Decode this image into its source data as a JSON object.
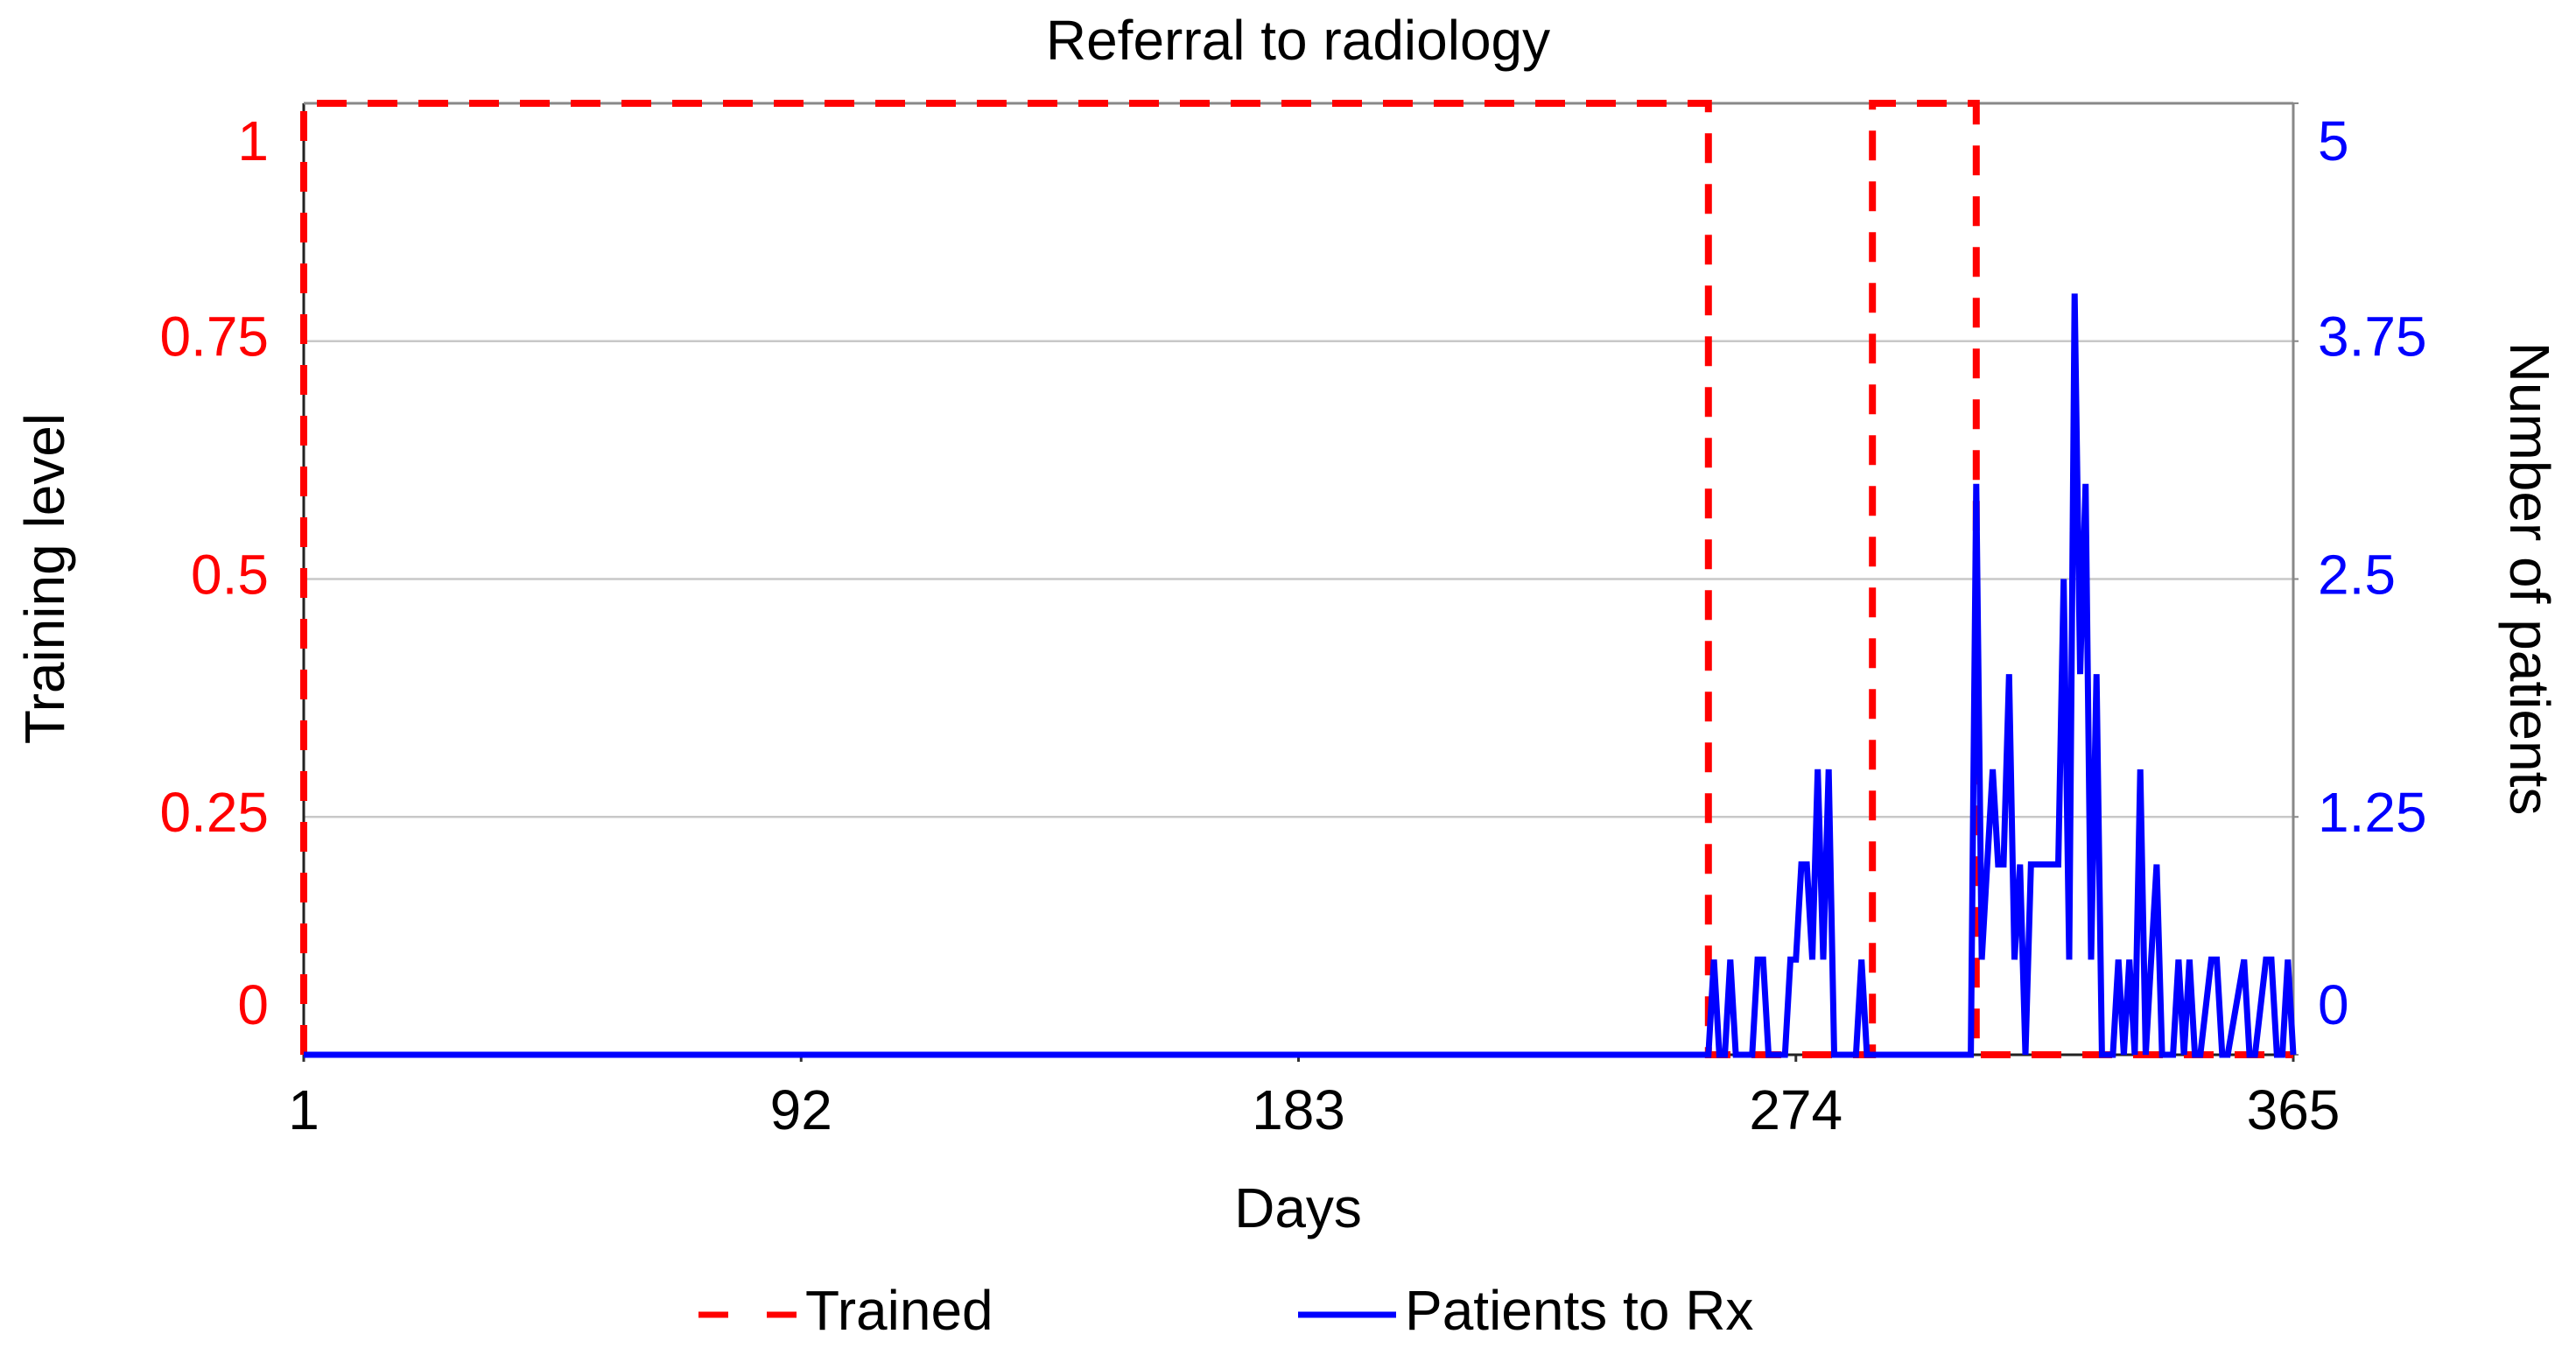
{
  "chart_data": {
    "type": "line",
    "title": "Referral to radiology",
    "x_label": "Days",
    "y_label": "Training level",
    "y2_label": "Number of patients",
    "xlim": [
      1,
      365
    ],
    "xticks": [
      1,
      92,
      183,
      274,
      365
    ],
    "ylim": [
      0,
      1
    ],
    "yticks": [
      0,
      0.25,
      0.5,
      0.75,
      1
    ],
    "y2lim": [
      0,
      5
    ],
    "y2ticks": [
      0,
      1.25,
      2.5,
      3.75,
      5
    ],
    "grid": true,
    "legend_position": "bottom",
    "y_color": "#ff0000",
    "y2_color": "#0000ff",
    "series": [
      {
        "name": "Trained",
        "color": "#ff0000",
        "line_style": "dashed",
        "x": [
          1,
          1,
          258,
          258,
          288,
          288,
          307,
          307,
          365
        ],
        "values": [
          0,
          1,
          1,
          0,
          0,
          1,
          1,
          0,
          0
        ]
      },
      {
        "name": "Patients to Rx",
        "color": "#0000ff",
        "line_style": "solid",
        "axis": "y2",
        "x": [
          1,
          258,
          259,
          260,
          261,
          262,
          263,
          266,
          267,
          268,
          269,
          272,
          273,
          274,
          275,
          276,
          277,
          278,
          279,
          280,
          281,
          285,
          286,
          287,
          306,
          307,
          308,
          309,
          310,
          311,
          312,
          313,
          314,
          315,
          316,
          317,
          318,
          319,
          320,
          321,
          322,
          323,
          324,
          325,
          326,
          327,
          328,
          329,
          330,
          332,
          333,
          334,
          335,
          336,
          337,
          338,
          339,
          340,
          341,
          343,
          344,
          345,
          346,
          347,
          348,
          350,
          351,
          352,
          353,
          356,
          357,
          358,
          360,
          361,
          362,
          363,
          364,
          365
        ],
        "values": [
          0,
          0,
          0.5,
          0,
          0,
          0.5,
          0,
          0,
          0.5,
          0.5,
          0,
          0,
          0.5,
          0.5,
          1,
          1,
          0.5,
          1.5,
          0.5,
          1.5,
          0,
          0,
          0.5,
          0,
          0,
          3,
          0.5,
          1,
          1.5,
          1,
          1,
          2,
          0.5,
          1,
          0,
          1,
          1,
          1,
          1,
          1,
          1,
          2.5,
          0.5,
          4,
          2,
          3,
          0.5,
          2,
          0,
          0,
          0.5,
          0,
          0.5,
          0,
          1.5,
          0,
          0.5,
          1,
          0,
          0,
          0.5,
          0,
          0.5,
          0,
          0,
          0.5,
          0.5,
          0,
          0,
          0.5,
          0,
          0,
          0.5,
          0.5,
          0,
          0,
          0.5,
          0
        ]
      }
    ]
  }
}
